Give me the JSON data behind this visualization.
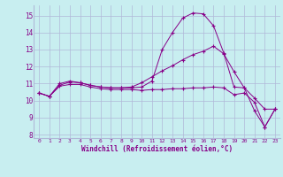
{
  "xlabel": "Windchill (Refroidissement éolien,°C)",
  "bg_color": "#c8eef0",
  "grid_color": "#b0b8d8",
  "line_color": "#880088",
  "xlim": [
    -0.5,
    23.5
  ],
  "ylim": [
    7.8,
    15.6
  ],
  "yticks": [
    8,
    9,
    10,
    11,
    12,
    13,
    14,
    15
  ],
  "xticks": [
    0,
    1,
    2,
    3,
    4,
    5,
    6,
    7,
    8,
    9,
    10,
    11,
    12,
    13,
    14,
    15,
    16,
    17,
    18,
    19,
    20,
    21,
    22,
    23
  ],
  "series1_x": [
    0,
    1,
    2,
    3,
    4,
    5,
    6,
    7,
    8,
    9,
    10,
    11,
    12,
    13,
    14,
    15,
    16,
    17,
    18,
    19,
    20,
    21,
    22,
    23
  ],
  "series1_y": [
    10.45,
    10.25,
    10.9,
    11.1,
    11.05,
    10.9,
    10.8,
    10.75,
    10.75,
    10.75,
    10.8,
    11.15,
    13.0,
    14.0,
    14.85,
    15.15,
    15.1,
    14.4,
    12.8,
    10.8,
    10.75,
    9.4,
    8.45,
    9.5
  ],
  "series2_x": [
    0,
    1,
    2,
    3,
    4,
    5,
    6,
    7,
    8,
    9,
    10,
    11,
    12,
    13,
    14,
    15,
    16,
    17,
    18,
    19,
    20,
    21,
    22,
    23
  ],
  "series2_y": [
    10.45,
    10.25,
    11.0,
    11.15,
    11.05,
    10.9,
    10.8,
    10.75,
    10.75,
    10.8,
    11.05,
    11.4,
    11.75,
    12.05,
    12.4,
    12.7,
    12.9,
    13.2,
    12.75,
    11.7,
    10.75,
    10.15,
    9.5,
    9.5
  ],
  "series3_x": [
    0,
    1,
    2,
    3,
    4,
    5,
    6,
    7,
    8,
    9,
    10,
    11,
    12,
    13,
    14,
    15,
    16,
    17,
    18,
    19,
    20,
    21,
    22,
    23
  ],
  "series3_y": [
    10.45,
    10.25,
    10.85,
    10.95,
    10.95,
    10.8,
    10.7,
    10.65,
    10.65,
    10.65,
    10.6,
    10.65,
    10.65,
    10.7,
    10.7,
    10.75,
    10.75,
    10.8,
    10.75,
    10.35,
    10.45,
    9.9,
    8.45,
    9.5
  ]
}
